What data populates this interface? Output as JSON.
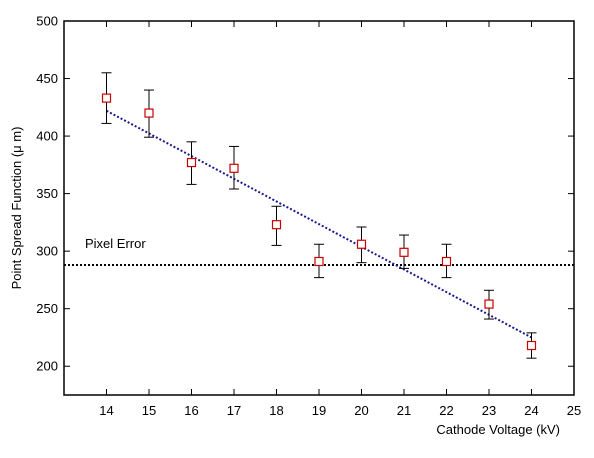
{
  "chart_data": {
    "type": "scatter",
    "xlabel": "Cathode Voltage (kV)",
    "ylabel": "Point Spread Function (μ m)",
    "xlim": [
      13,
      25
    ],
    "ylim": [
      175,
      500
    ],
    "x_ticks": [
      14,
      15,
      16,
      17,
      18,
      19,
      20,
      21,
      22,
      23,
      24,
      25
    ],
    "y_ticks": [
      200,
      250,
      300,
      350,
      400,
      450,
      500
    ],
    "grid": false,
    "series": [
      {
        "marker": "open-square",
        "color": "#cc0000",
        "x": [
          14,
          15,
          16,
          17,
          18,
          19,
          20,
          21,
          22,
          23,
          24
        ],
        "y": [
          433,
          420,
          377,
          372,
          323,
          291,
          306,
          299,
          291,
          254,
          218
        ],
        "y_err_low": [
          411,
          399,
          358,
          354,
          305,
          277,
          290,
          285,
          277,
          241,
          207
        ],
        "y_err_high": [
          455,
          440,
          395,
          391,
          339,
          306,
          321,
          314,
          306,
          266,
          229
        ]
      }
    ],
    "fit_line": {
      "style": "dotted",
      "color": "#1a1a8c",
      "x": [
        14,
        24
      ],
      "y": [
        422,
        225
      ]
    },
    "reference_line": {
      "label": "Pixel Error",
      "y": 288,
      "style": "dotted",
      "color": "#000000"
    }
  }
}
